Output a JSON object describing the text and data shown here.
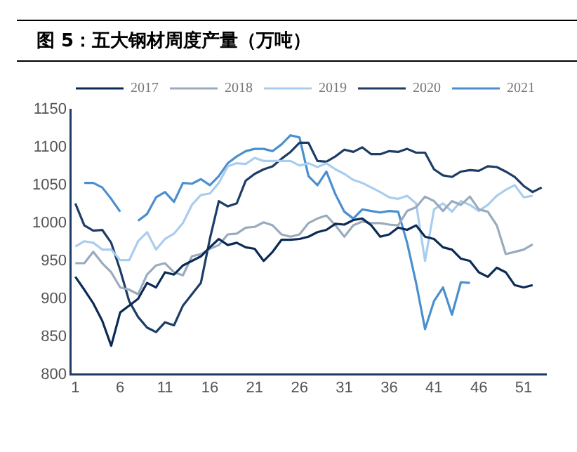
{
  "chart_data": {
    "type": "line",
    "title": "图 5：五大钢材周度产量（万吨）",
    "x": [
      1,
      2,
      3,
      4,
      5,
      6,
      7,
      8,
      9,
      10,
      11,
      12,
      13,
      14,
      15,
      16,
      17,
      18,
      19,
      20,
      21,
      22,
      23,
      24,
      25,
      26,
      27,
      28,
      29,
      30,
      31,
      32,
      33,
      34,
      35,
      36,
      37,
      38,
      39,
      40,
      41,
      42,
      43,
      44,
      45,
      46,
      47,
      48,
      49,
      50,
      51,
      52,
      53
    ],
    "xlim": [
      0.5,
      53.5
    ],
    "xticks": [
      1,
      6,
      11,
      16,
      21,
      26,
      31,
      36,
      41,
      46,
      51
    ],
    "ylim": [
      800,
      1150
    ],
    "yticks": [
      800,
      850,
      900,
      950,
      1000,
      1050,
      1100,
      1150
    ],
    "grid": false,
    "legend": "top",
    "marker": "none",
    "line_style": "solid",
    "series": [
      {
        "name": "2017",
        "color": "#0b2a55",
        "values": [
          929,
          912,
          894,
          871,
          838,
          882,
          891,
          900,
          921,
          915,
          935,
          932,
          944,
          950,
          956,
          968,
          979,
          971,
          974,
          968,
          966,
          950,
          962,
          978,
          978,
          979,
          982,
          988,
          991,
          999,
          998,
          1004,
          1006,
          997,
          982,
          985,
          994,
          991,
          997,
          982,
          979,
          968,
          965,
          953,
          950,
          935,
          929,
          941,
          935,
          918,
          915,
          918,
          null
        ]
      },
      {
        "name": "2018",
        "color": "#9aabbd",
        "values": [
          947,
          947,
          962,
          947,
          935,
          915,
          912,
          906,
          932,
          944,
          947,
          935,
          931,
          956,
          959,
          966,
          971,
          985,
          986,
          994,
          995,
          1001,
          997,
          985,
          982,
          985,
          1000,
          1006,
          1010,
          997,
          982,
          997,
          1002,
          1000,
          1000,
          998,
          997,
          1016,
          1021,
          1035,
          1029,
          1016,
          1029,
          1024,
          1035,
          1018,
          1015,
          997,
          959,
          962,
          965,
          972,
          null
        ]
      },
      {
        "name": "2019",
        "color": "#a9cdee",
        "values": [
          969,
          976,
          974,
          965,
          965,
          951,
          951,
          976,
          988,
          965,
          979,
          986,
          1000,
          1024,
          1037,
          1039,
          1053,
          1075,
          1079,
          1078,
          1086,
          1082,
          1082,
          1082,
          1082,
          1076,
          1079,
          1074,
          1079,
          1071,
          1065,
          1057,
          1053,
          1047,
          1041,
          1034,
          1032,
          1036,
          1026,
          950,
          1018,
          1026,
          1015,
          1029,
          1024,
          1016,
          1024,
          1036,
          1044,
          1050,
          1034,
          1036,
          null
        ]
      },
      {
        "name": "2020",
        "color": "#1d3c66",
        "values": [
          1026,
          997,
          990,
          991,
          974,
          938,
          897,
          876,
          862,
          856,
          869,
          865,
          891,
          906,
          921,
          979,
          1029,
          1022,
          1026,
          1056,
          1065,
          1071,
          1075,
          1085,
          1094,
          1106,
          1106,
          1082,
          1081,
          1088,
          1097,
          1094,
          1100,
          1091,
          1091,
          1095,
          1094,
          1098,
          1093,
          1093,
          1071,
          1063,
          1061,
          1068,
          1070,
          1069,
          1075,
          1074,
          1068,
          1061,
          1049,
          1041,
          1047
        ]
      },
      {
        "name": "2021",
        "color": "#4a8fd0",
        "values": [
          null,
          1053,
          1053,
          1047,
          1032,
          1015,
          null,
          1003,
          1012,
          1034,
          1041,
          1028,
          1053,
          1052,
          1058,
          1050,
          1062,
          1079,
          1088,
          1095,
          1098,
          1098,
          1095,
          1104,
          1116,
          1113,
          1062,
          1050,
          1068,
          1038,
          1015,
          1006,
          1018,
          1016,
          1014,
          1016,
          1015,
          974,
          921,
          860,
          897,
          915,
          879,
          922,
          921,
          null,
          null,
          null,
          null,
          null,
          null,
          null,
          null
        ]
      }
    ]
  }
}
